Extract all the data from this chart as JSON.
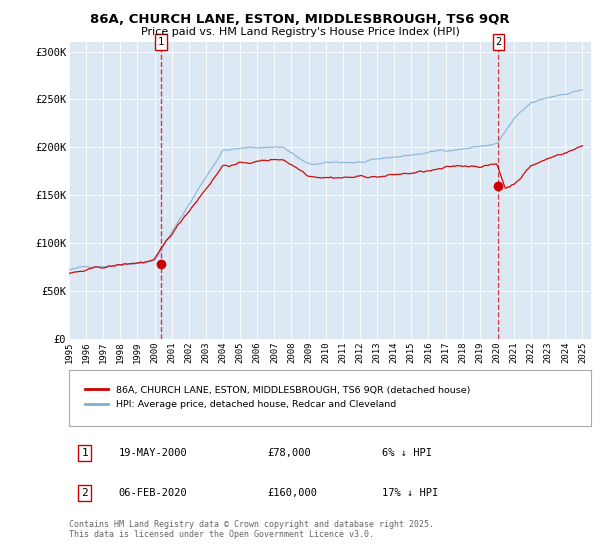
{
  "title": "86A, CHURCH LANE, ESTON, MIDDLESBROUGH, TS6 9QR",
  "subtitle": "Price paid vs. HM Land Registry's House Price Index (HPI)",
  "fig_bg_color": "#ffffff",
  "plot_bg_color": "#dce9f5",
  "line_color_red": "#cc0000",
  "line_color_blue": "#7eb0d4",
  "ylim": [
    0,
    310000
  ],
  "yticks": [
    0,
    50000,
    100000,
    150000,
    200000,
    250000,
    300000
  ],
  "ytick_labels": [
    "£0",
    "£50K",
    "£100K",
    "£150K",
    "£200K",
    "£250K",
    "£300K"
  ],
  "purchase1_year": 2000.38,
  "purchase1_price": 78000,
  "purchase1_date": "19-MAY-2000",
  "purchase1_pct": "6% ↓ HPI",
  "purchase2_year": 2020.09,
  "purchase2_price": 160000,
  "purchase2_date": "06-FEB-2020",
  "purchase2_pct": "17% ↓ HPI",
  "legend_red": "86A, CHURCH LANE, ESTON, MIDDLESBROUGH, TS6 9QR (detached house)",
  "legend_blue": "HPI: Average price, detached house, Redcar and Cleveland",
  "footer": "Contains HM Land Registry data © Crown copyright and database right 2025.\nThis data is licensed under the Open Government Licence v3.0."
}
